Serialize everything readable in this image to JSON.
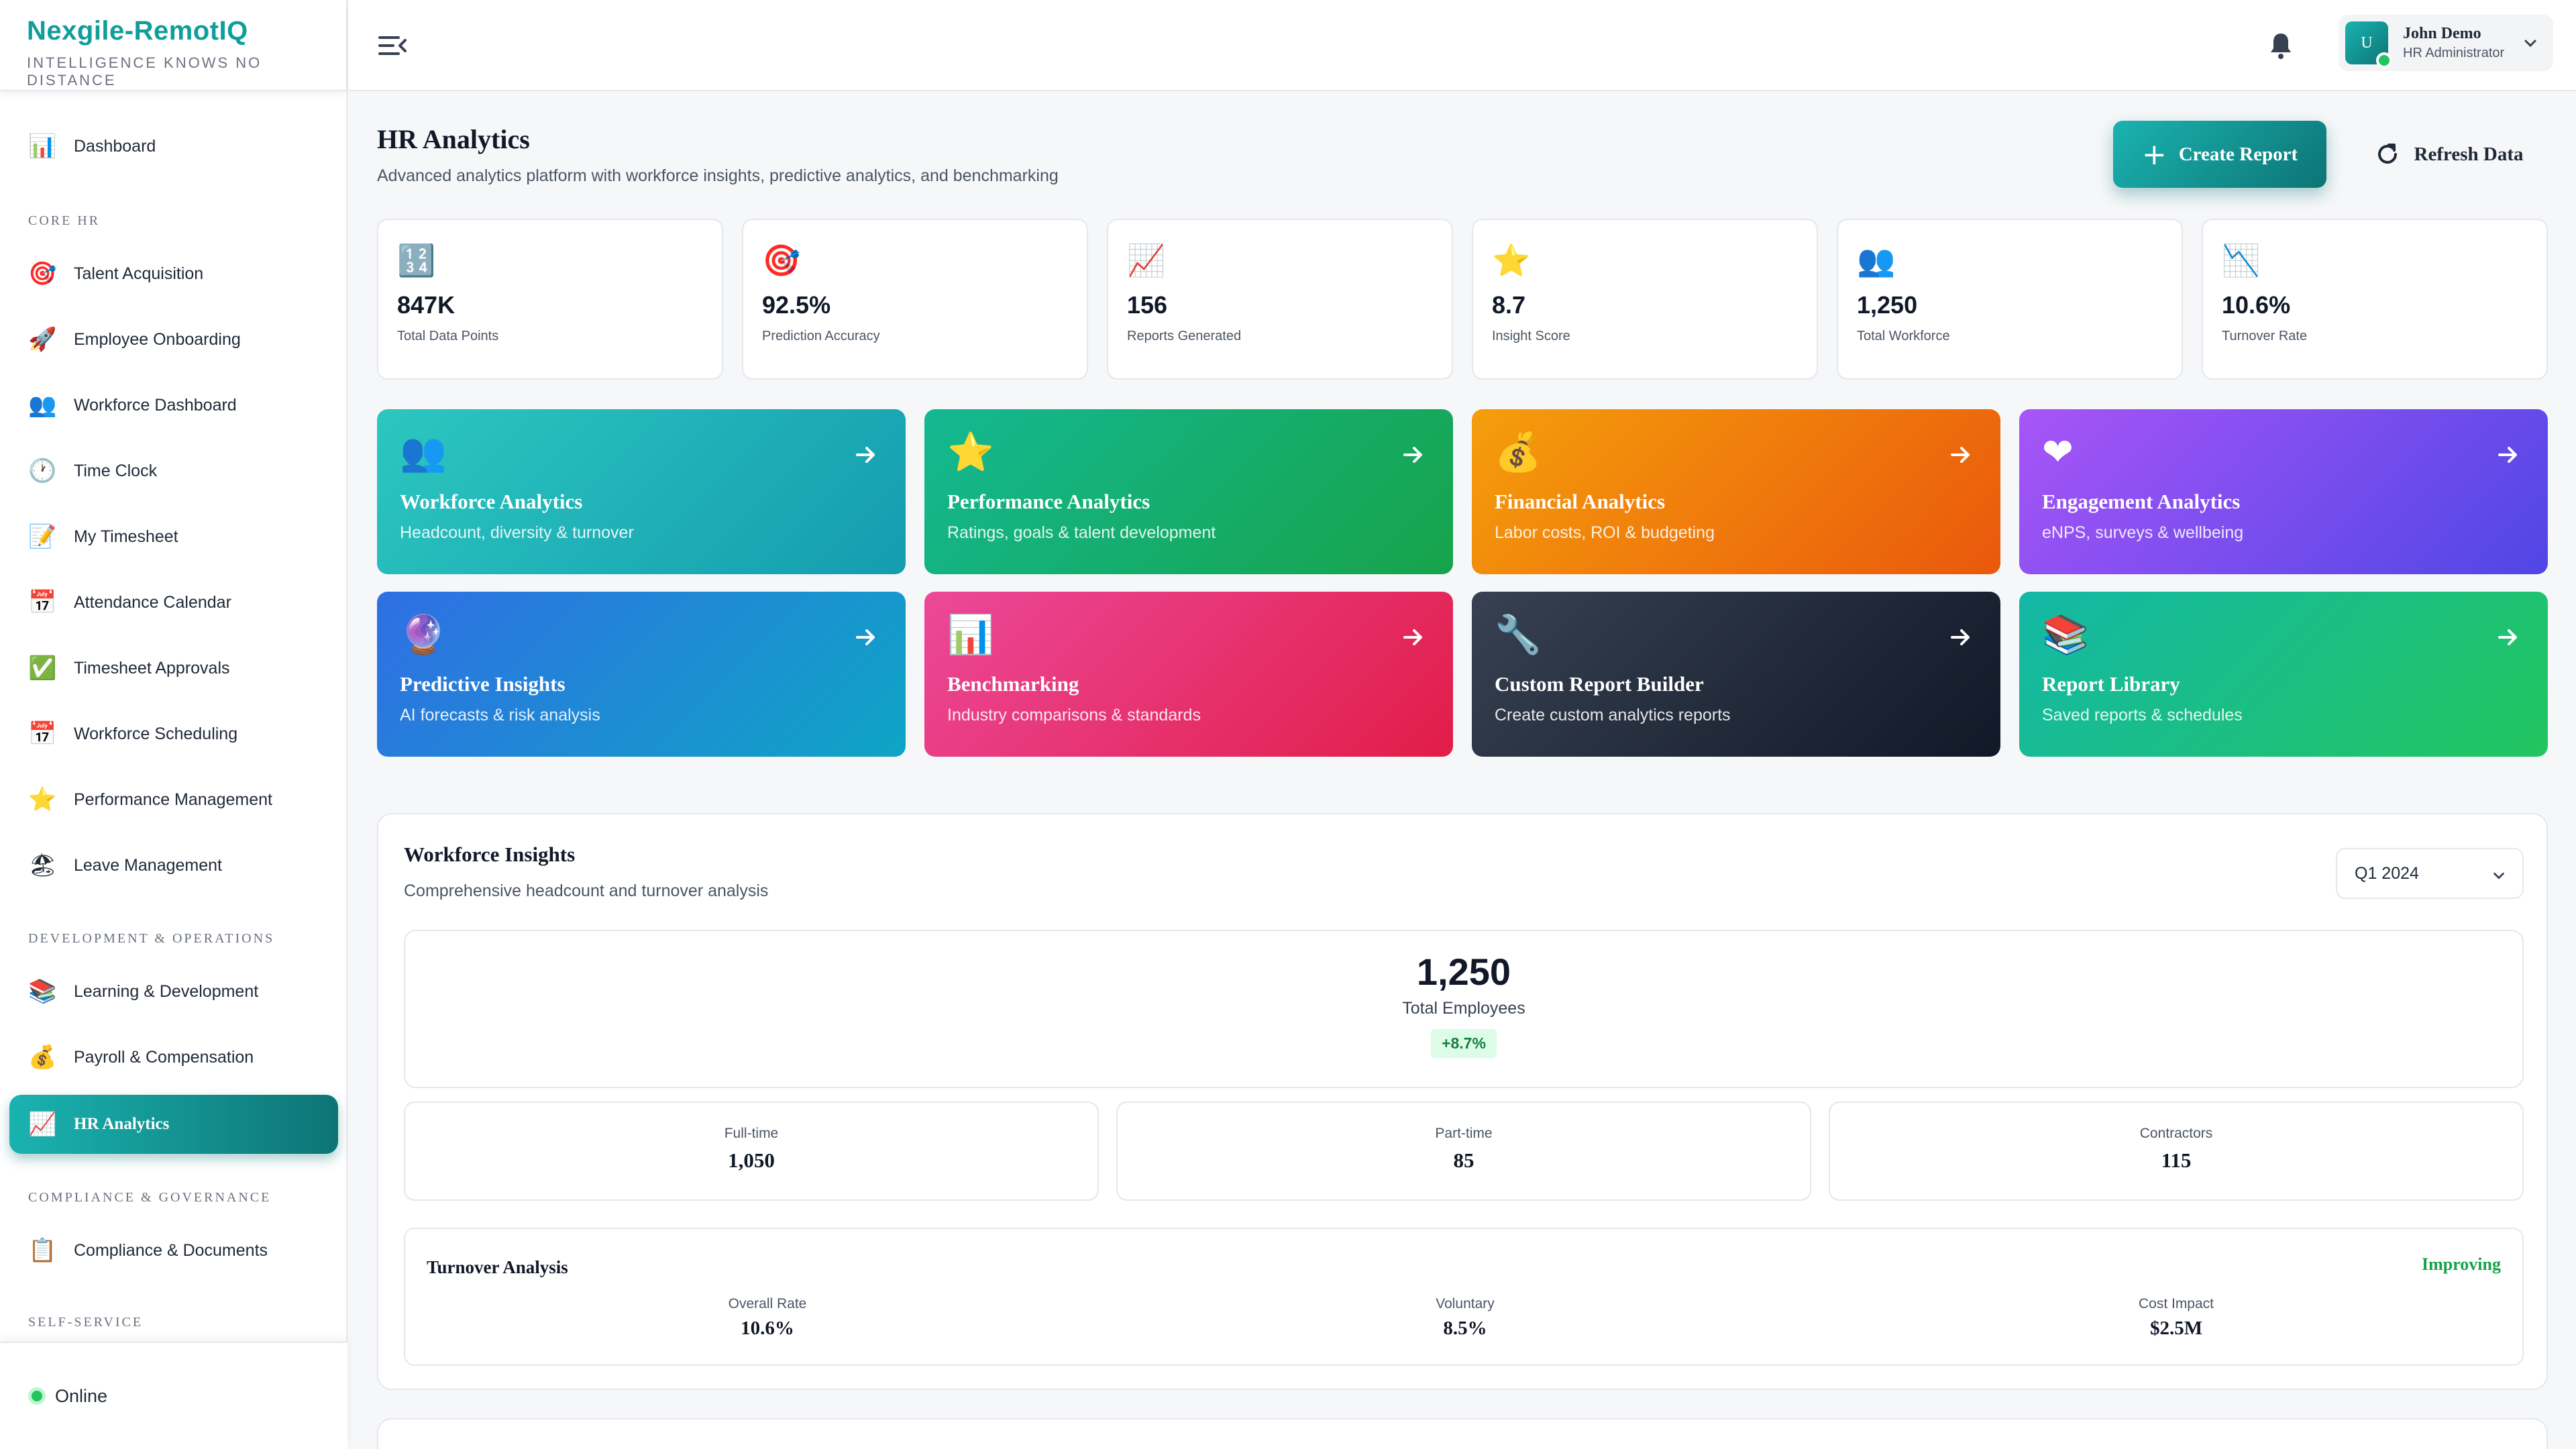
{
  "brand": {
    "title": "Nexgile-RemotIQ",
    "tagline": "INTELLIGENCE KNOWS NO DISTANCE"
  },
  "sidebar": {
    "dashboard": {
      "icon": "bar-chart-icon",
      "glyph": "📊",
      "label": "Dashboard"
    },
    "sections": [
      "CORE HR",
      "DEVELOPMENT & OPERATIONS",
      "COMPLIANCE & GOVERNANCE",
      "SELF-SERVICE"
    ],
    "items": [
      {
        "icon": "target-icon",
        "glyph": "🎯",
        "label": "Talent Acquisition"
      },
      {
        "icon": "rocket-icon",
        "glyph": "🚀",
        "label": "Employee Onboarding"
      },
      {
        "icon": "people-icon",
        "glyph": "👥",
        "label": "Workforce Dashboard"
      },
      {
        "icon": "clock-icon",
        "glyph": "🕐",
        "label": "Time Clock"
      },
      {
        "icon": "memo-icon",
        "glyph": "📝",
        "label": "My Timesheet"
      },
      {
        "icon": "calendar-icon",
        "glyph": "📅",
        "label": "Attendance Calendar"
      },
      {
        "icon": "checkmark-icon",
        "glyph": "✅",
        "label": "Timesheet Approvals"
      },
      {
        "icon": "calendar-icon",
        "glyph": "📅",
        "label": "Workforce Scheduling"
      },
      {
        "icon": "star-icon",
        "glyph": "⭐",
        "label": "Performance Management"
      },
      {
        "icon": "beach-umbrella-icon",
        "glyph": "🏖",
        "label": "Leave Management"
      },
      {
        "icon": "books-icon",
        "glyph": "📚",
        "label": "Learning & Development"
      },
      {
        "icon": "money-bag-icon",
        "glyph": "💰",
        "label": "Payroll & Compensation"
      },
      {
        "icon": "trend-up-icon",
        "glyph": "📈",
        "label": "HR Analytics"
      },
      {
        "icon": "clipboard-icon",
        "glyph": "📋",
        "label": "Compliance & Documents"
      }
    ],
    "status": "Online"
  },
  "topbar": {
    "user_initial": "U",
    "user_name": "John Demo",
    "user_role": "HR Administrator"
  },
  "header": {
    "title": "HR Analytics",
    "subtitle": "Advanced analytics platform with workforce insights, predictive analytics, and benchmarking",
    "create_label": "Create Report",
    "refresh_label": "Refresh Data"
  },
  "stats": [
    {
      "icon": "numbers-icon",
      "glyph": "🔢",
      "value": "847K",
      "label": "Total Data Points"
    },
    {
      "icon": "target-icon",
      "glyph": "🎯",
      "value": "92.5%",
      "label": "Prediction Accuracy"
    },
    {
      "icon": "trend-up-icon",
      "glyph": "📈",
      "value": "156",
      "label": "Reports Generated"
    },
    {
      "icon": "star-icon",
      "glyph": "⭐",
      "value": "8.7",
      "label": "Insight Score"
    },
    {
      "icon": "people-icon",
      "glyph": "👥",
      "value": "1,250",
      "label": "Total Workforce"
    },
    {
      "icon": "trend-down-icon",
      "glyph": "📉",
      "value": "10.6%",
      "label": "Turnover Rate"
    }
  ],
  "cards": [
    {
      "icon": "people-icon",
      "glyph": "👥",
      "title": "Workforce Analytics",
      "desc": "Headcount, diversity & turnover",
      "color_from": "#2cc7bf",
      "color_to": "#149cb0"
    },
    {
      "icon": "star-icon",
      "glyph": "⭐",
      "title": "Performance Analytics",
      "desc": "Ratings, goals & talent development",
      "color_from": "#14b892",
      "color_to": "#16a34a"
    },
    {
      "icon": "money-bag-icon",
      "glyph": "💰",
      "title": "Financial Analytics",
      "desc": "Labor costs, ROI & budgeting",
      "color_from": "#f59e0b",
      "color_to": "#ea580c"
    },
    {
      "icon": "heart-icon",
      "glyph": "❤",
      "title": "Engagement Analytics",
      "desc": "eNPS, surveys & wellbeing",
      "color_from": "#a855f7",
      "color_to": "#4f46e5"
    },
    {
      "icon": "crystal-ball-icon",
      "glyph": "🔮",
      "title": "Predictive Insights",
      "desc": "AI forecasts & risk analysis",
      "color_from": "#2f6fe4",
      "color_to": "#0ea5c4"
    },
    {
      "icon": "bar-chart-icon",
      "glyph": "📊",
      "title": "Benchmarking",
      "desc": "Industry comparisons & standards",
      "color_from": "#ec4899",
      "color_to": "#e11d48"
    },
    {
      "icon": "wrench-icon",
      "glyph": "🔧",
      "title": "Custom Report Builder",
      "desc": "Create custom analytics reports",
      "color_from": "#374151",
      "color_to": "#111827"
    },
    {
      "icon": "books-icon",
      "glyph": "📚",
      "title": "Report Library",
      "desc": "Saved reports & schedules",
      "color_from": "#14b8a6",
      "color_to": "#22c55e"
    }
  ],
  "insights": {
    "title": "Workforce Insights",
    "subtitle": "Comprehensive headcount and turnover analysis",
    "period": "Q1 2024",
    "total": "1,250",
    "total_label": "Total Employees",
    "change": "+8.7%",
    "breakdown": [
      {
        "label": "Full-time",
        "value": "1,050"
      },
      {
        "label": "Part-time",
        "value": "85"
      },
      {
        "label": "Contractors",
        "value": "115"
      }
    ],
    "turnover": {
      "title": "Turnover Analysis",
      "status": "Improving",
      "metrics": [
        {
          "label": "Overall Rate",
          "value": "10.6%"
        },
        {
          "label": "Voluntary",
          "value": "8.5%"
        },
        {
          "label": "Cost Impact",
          "value": "$2.5M"
        }
      ]
    }
  }
}
